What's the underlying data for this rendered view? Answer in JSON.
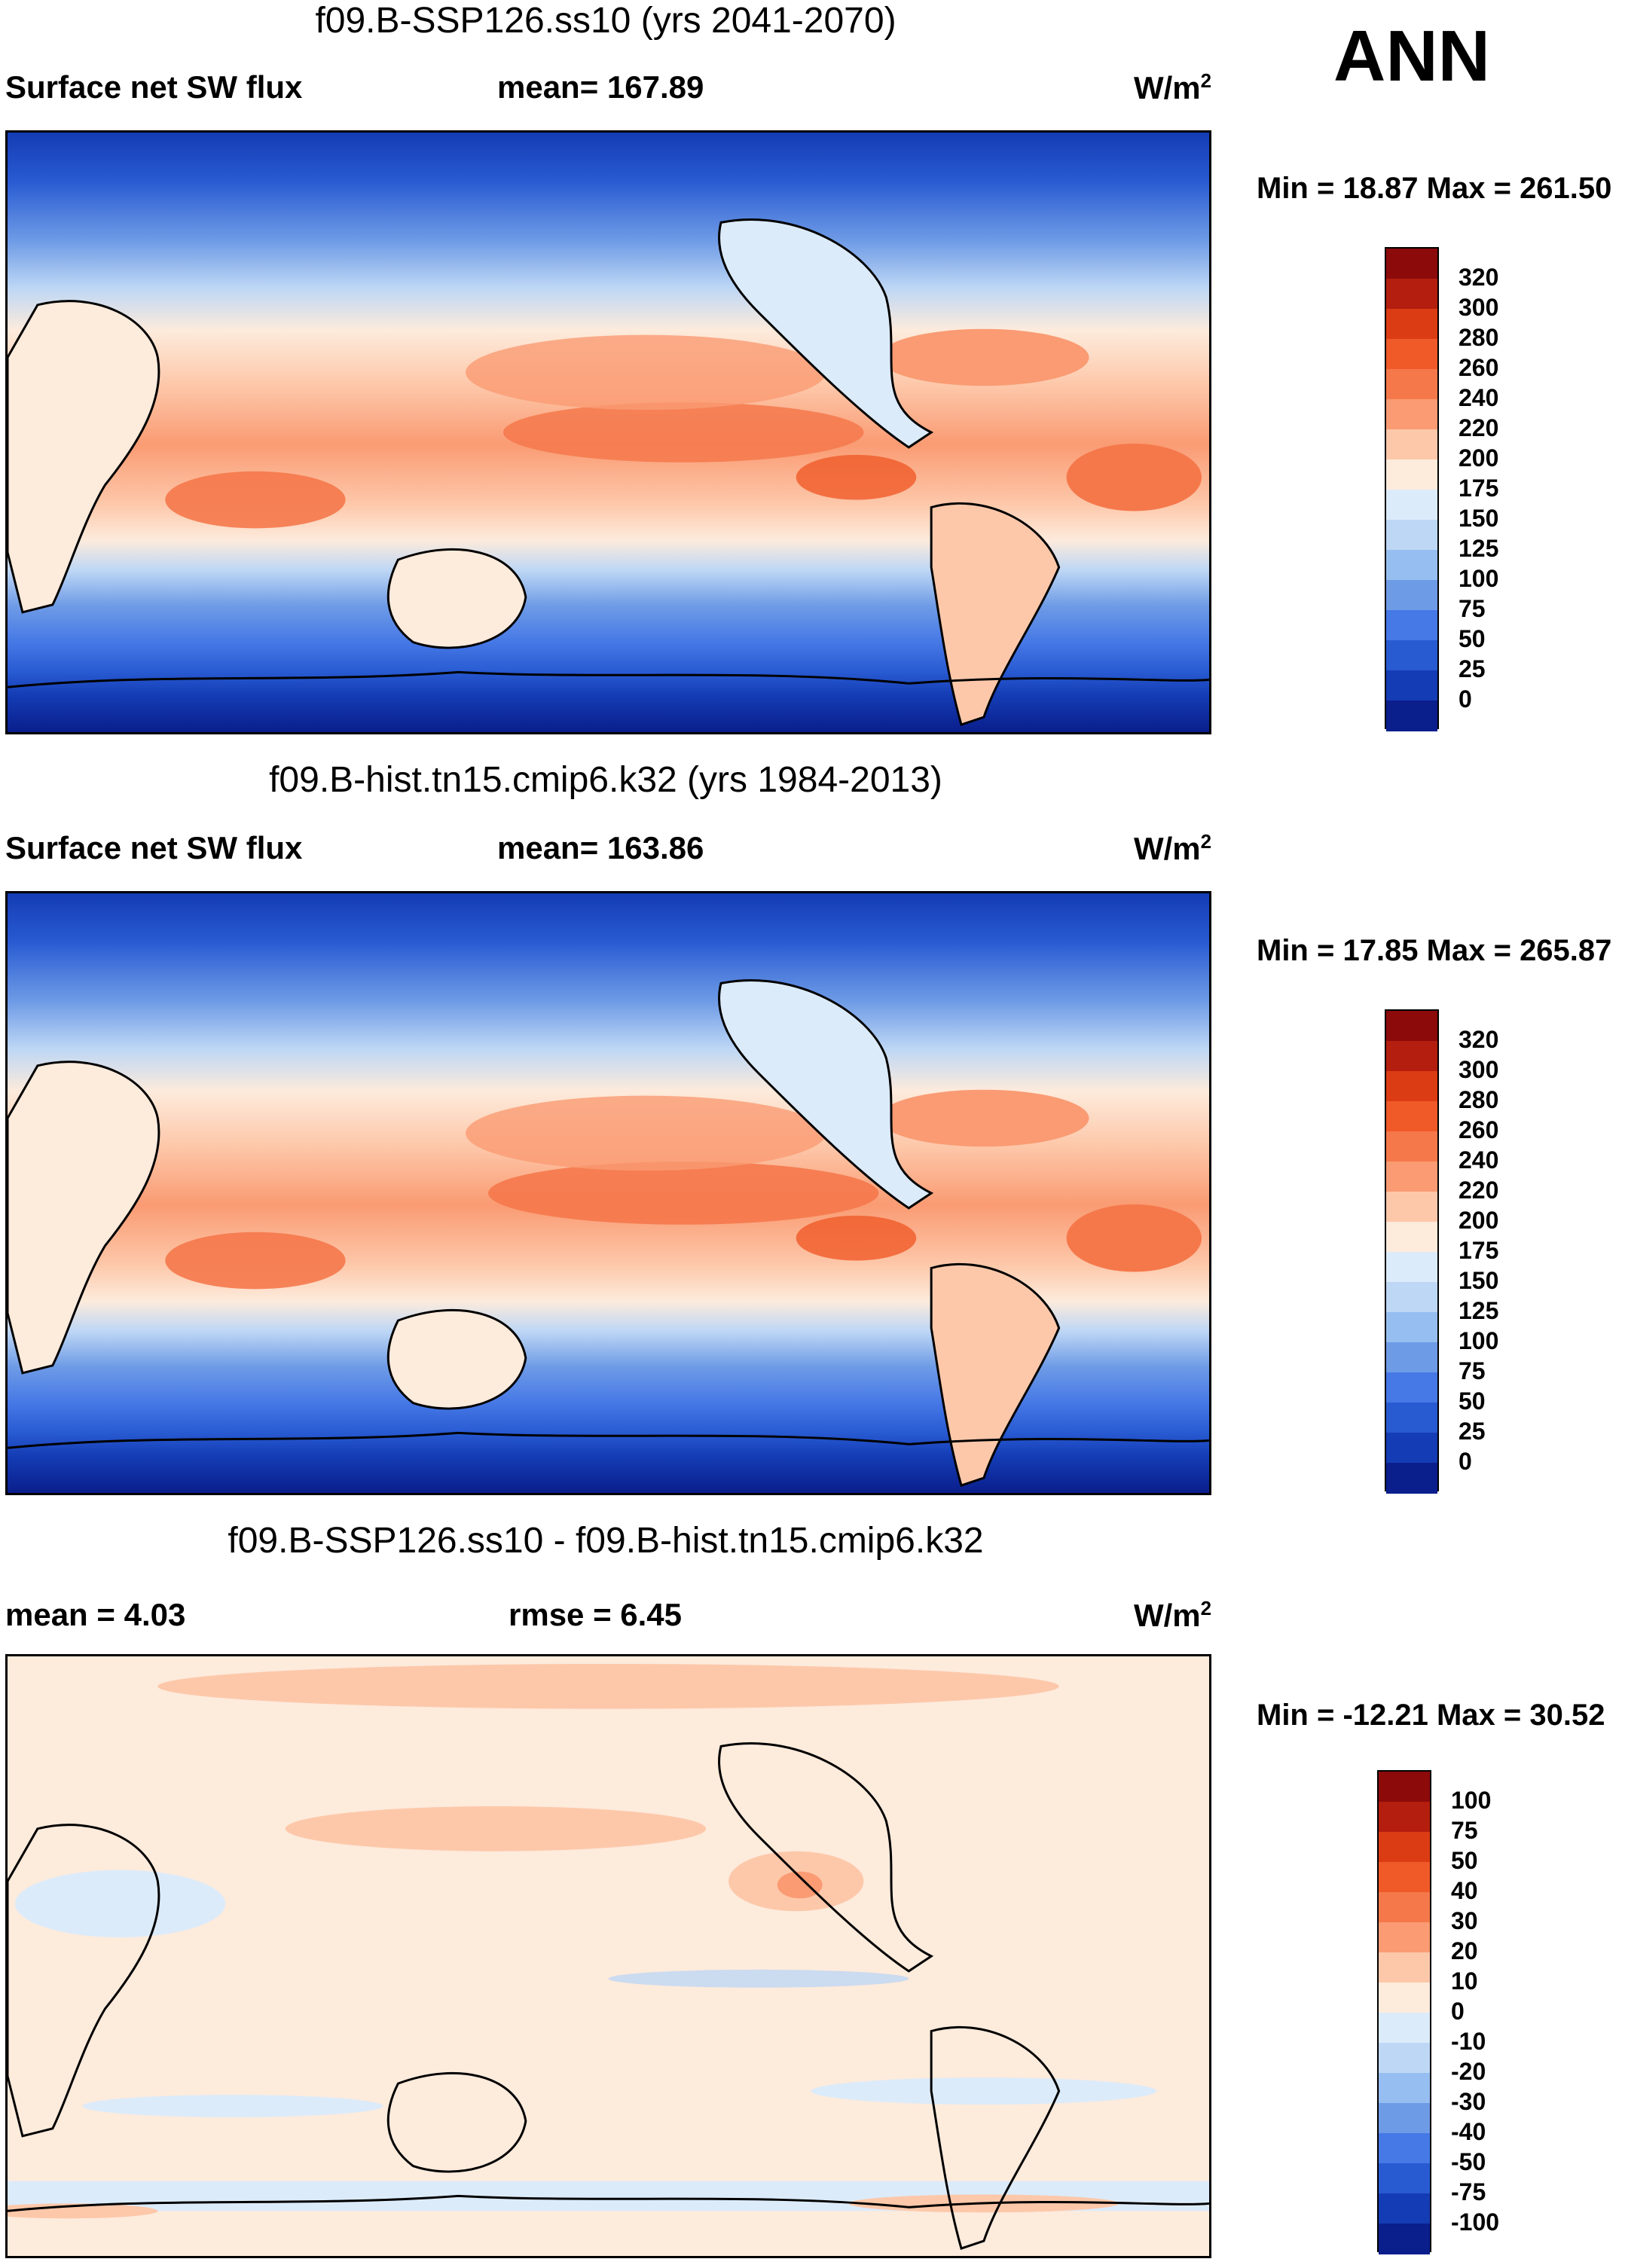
{
  "season": "ANN",
  "panels": [
    {
      "id": "ssp126",
      "title": "f09.B-SSP126.ss10 (yrs 2041-2070)",
      "left_label": "Surface net SW flux",
      "center_label": "mean= 167.89",
      "units": "W/m",
      "units_exp": "2",
      "minmax": "Min =  18.87 Max = 261.50",
      "kind": "abs"
    },
    {
      "id": "hist",
      "title": "f09.B-hist.tn15.cmip6.k32 (yrs 1984-2013)",
      "left_label": "Surface net SW flux",
      "center_label": "mean= 163.86",
      "units": "W/m",
      "units_exp": "2",
      "minmax": "Min =  17.85 Max = 265.87",
      "kind": "abs"
    },
    {
      "id": "diff",
      "title": "f09.B-SSP126.ss10 - f09.B-hist.tn15.cmip6.k32",
      "left_label": "mean =   4.03",
      "center_label": "rmse =   6.45",
      "units": "W/m",
      "units_exp": "2",
      "minmax": "Min = -12.21 Max =  30.52",
      "kind": "diff"
    }
  ],
  "colorbars": {
    "abs": {
      "labels": [
        "320",
        "300",
        "280",
        "260",
        "240",
        "220",
        "200",
        "175",
        "150",
        "125",
        "100",
        "75",
        "50",
        "25",
        "0"
      ],
      "colors": [
        "#8c0a0a",
        "#b41e0f",
        "#dc3c14",
        "#f05a28",
        "#f5784b",
        "#fa9b73",
        "#fdc8aa",
        "#fdebdc",
        "#dcebfa",
        "#bed7f5",
        "#96bef0",
        "#6e9be6",
        "#4678e6",
        "#285ad2",
        "#143cb4",
        "#0a1e8c"
      ]
    },
    "diff": {
      "labels": [
        "100",
        "75",
        "50",
        "40",
        "30",
        "20",
        "10",
        "0",
        "-10",
        "-20",
        "-30",
        "-40",
        "-50",
        "-75",
        "-100"
      ],
      "colors": [
        "#8c0a0a",
        "#b41e0f",
        "#dc3c14",
        "#f05a28",
        "#f5784b",
        "#fa9b73",
        "#fdc8aa",
        "#fdebdc",
        "#dcebfa",
        "#bed7f5",
        "#96bef0",
        "#6e9be6",
        "#4678e6",
        "#285ad2",
        "#143cb4",
        "#0a1e8c"
      ]
    }
  }
}
